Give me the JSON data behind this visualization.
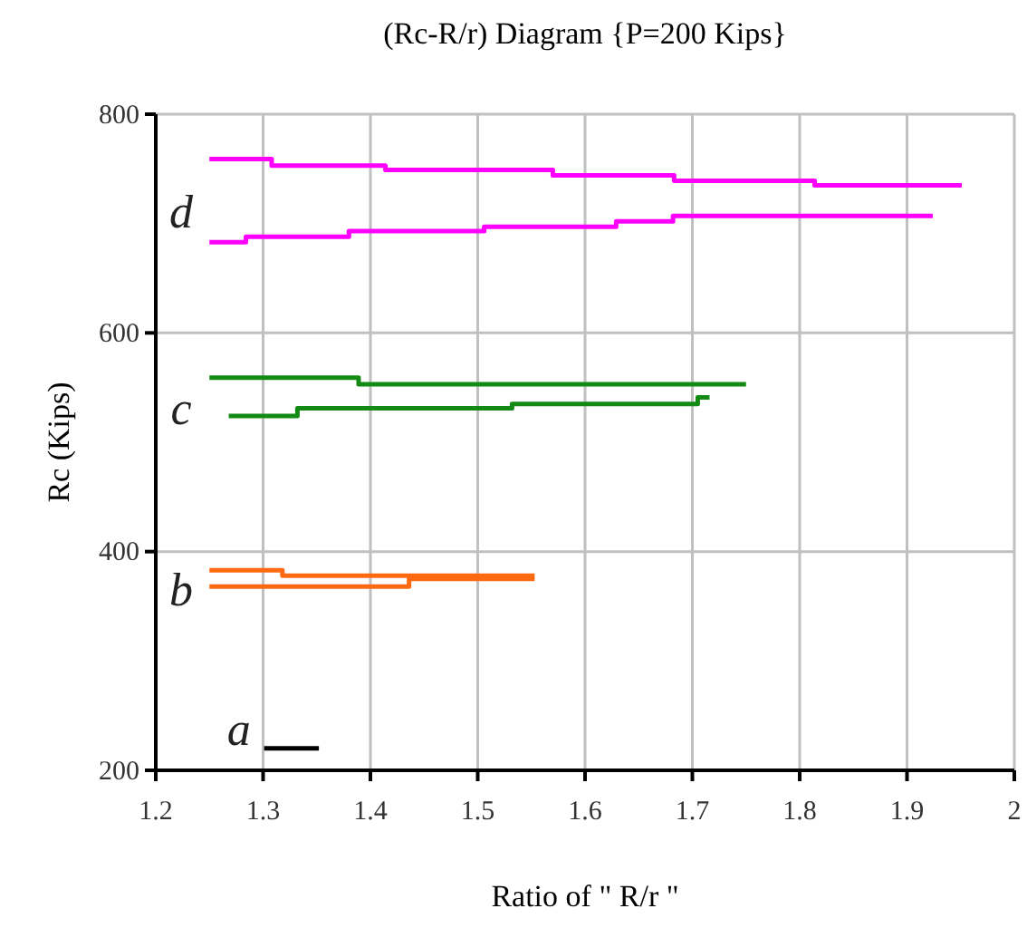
{
  "chart_data": {
    "type": "step",
    "title": "(Rc-R/r) Diagram {P=200 Kips}",
    "xlabel": "Ratio of \" R/r \"",
    "ylabel": "Rc (Kips)",
    "xlim": [
      1.2,
      2
    ],
    "xticks": [
      1.2,
      1.3,
      1.4,
      1.5,
      1.6,
      1.7,
      1.8,
      1.9,
      2
    ],
    "ylim": [
      200,
      800
    ],
    "yticks": [
      200,
      400,
      600,
      800
    ],
    "grid": true,
    "marker": "none",
    "line_style": "solid",
    "series": [
      {
        "color": "#ff00ff",
        "x": [
          1.25,
          1.308,
          1.414,
          1.57,
          1.683,
          1.814,
          1.951
        ],
        "values": [
          759,
          753,
          749,
          744,
          739,
          735,
          735
        ]
      },
      {
        "color": "#ff00ff",
        "x": [
          1.25,
          1.284,
          1.38,
          1.506,
          1.629,
          1.682,
          1.924
        ],
        "values": [
          683,
          688,
          693,
          697,
          702,
          707,
          707
        ]
      },
      {
        "color": "#138a13",
        "x": [
          1.25,
          1.389,
          1.75
        ],
        "values": [
          559,
          553,
          553
        ]
      },
      {
        "color": "#138a13",
        "x": [
          1.268,
          1.332,
          1.532,
          1.705,
          1.716
        ],
        "values": [
          524,
          531,
          535,
          541,
          541
        ]
      },
      {
        "color": "#ff6a10",
        "x": [
          1.25,
          1.318,
          1.553
        ],
        "values": [
          383,
          378,
          378
        ]
      },
      {
        "color": "#ff6a10",
        "x": [
          1.25,
          1.436,
          1.553
        ],
        "values": [
          368,
          375,
          375
        ]
      },
      {
        "color": "#000000",
        "x": [
          1.301,
          1.352
        ],
        "values": [
          220,
          220
        ]
      }
    ],
    "annotations": [
      "d",
      "c",
      "b",
      "a"
    ]
  }
}
